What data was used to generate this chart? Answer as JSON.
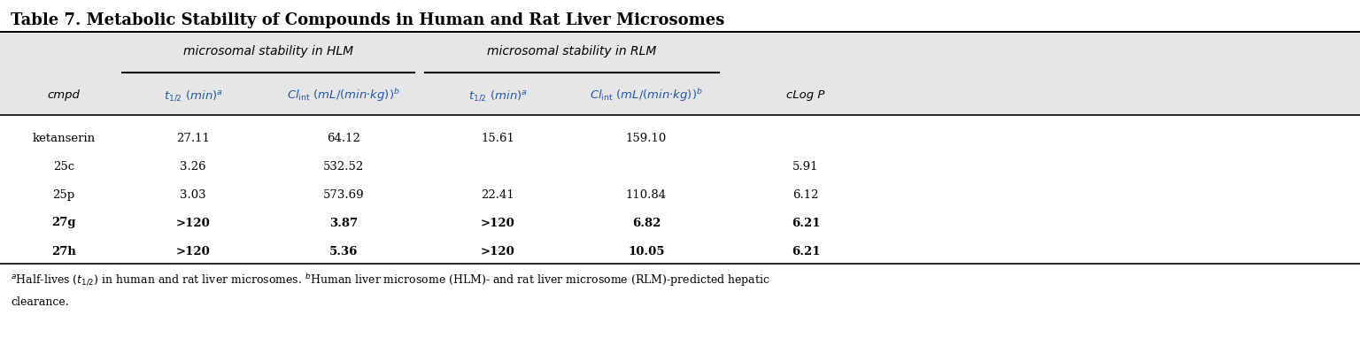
{
  "title": "Table 7. Metabolic Stability of Compounds in Human and Rat Liver Microsomes",
  "rows": [
    [
      "ketanserin",
      "27.11",
      "64.12",
      "15.61",
      "159.10",
      ""
    ],
    [
      "25c",
      "3.26",
      "532.52",
      "",
      "",
      "5.91"
    ],
    [
      "25p",
      "3.03",
      "573.69",
      "22.41",
      "110.84",
      "6.12"
    ],
    [
      "27g",
      ">120",
      "3.87",
      ">120",
      "6.82",
      "6.21"
    ],
    [
      "27h",
      ">120",
      "5.36",
      ">120",
      "10.05",
      "6.21"
    ]
  ],
  "bold_compounds": [
    "27g",
    "27h"
  ],
  "header_bg": "#e6e6e6",
  "bg_color": "#ffffff",
  "text_color": "#000000",
  "blue_color": "#2255aa",
  "figwidth": 15.36,
  "figheight": 3.82,
  "dpi": 100
}
